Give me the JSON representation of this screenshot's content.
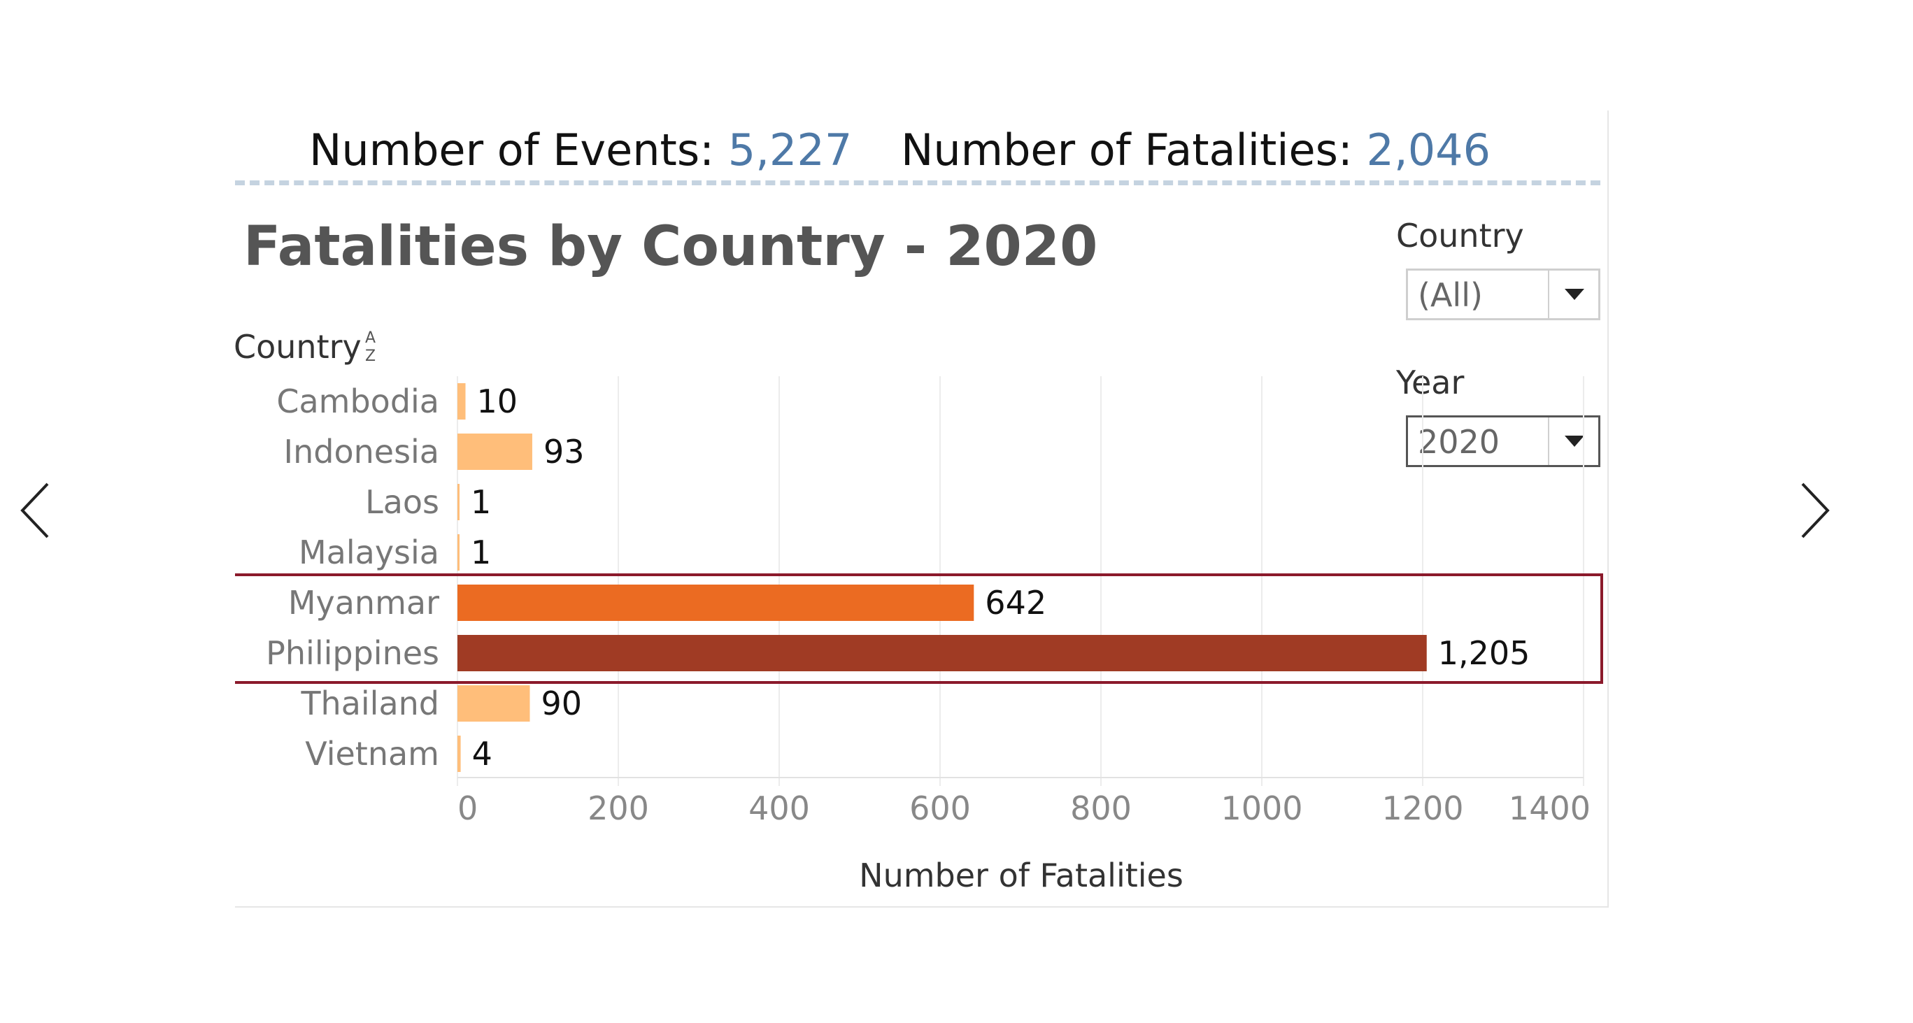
{
  "kpis": {
    "events_label": "Number of Events:",
    "events_value": "5,227",
    "fatalities_label": "Number of Fatalities:",
    "fatalities_value": "2,046",
    "value_color": "#4e79a7"
  },
  "filters": {
    "country_label": "Country",
    "country_value": "(All)",
    "year_label": "Year",
    "year_value": "2020"
  },
  "icons": {
    "prev": "chevron-left-icon",
    "next": "chevron-right-icon",
    "sort": "sort-alpha-icon",
    "dropdown": "caret-down-icon"
  },
  "highlight": {
    "categories": [
      "Myanmar",
      "Philippines"
    ],
    "color": "#8b1a2b"
  },
  "chart_data": {
    "type": "bar",
    "orientation": "horizontal",
    "title": "Fatalities by Country - 2020",
    "category_header": "Country",
    "xlabel": "Number of Fatalities",
    "categories": [
      "Cambodia",
      "Indonesia",
      "Laos",
      "Malaysia",
      "Myanmar",
      "Philippines",
      "Thailand",
      "Vietnam"
    ],
    "values": [
      10,
      93,
      1,
      1,
      642,
      1205,
      90,
      4
    ],
    "value_labels": [
      "10",
      "93",
      "1",
      "1",
      "642",
      "1,205",
      "90",
      "4"
    ],
    "colors": [
      "#ffbe7a",
      "#ffbe7a",
      "#ffbe7a",
      "#ffbe7a",
      "#eb6b22",
      "#a03b24",
      "#ffbe7a",
      "#ffbe7a"
    ],
    "xlim": [
      0,
      1400
    ],
    "xticks": [
      0,
      200,
      400,
      600,
      800,
      1000,
      1200,
      1400
    ],
    "grid": true
  }
}
